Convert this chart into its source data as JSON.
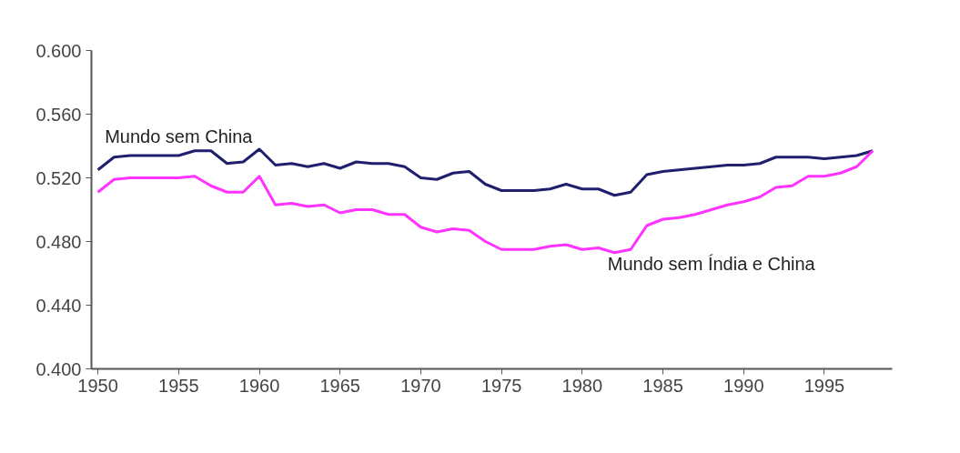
{
  "chart_data": {
    "type": "line",
    "x": [
      1950,
      1951,
      1952,
      1953,
      1954,
      1955,
      1956,
      1957,
      1958,
      1959,
      1960,
      1961,
      1962,
      1963,
      1964,
      1965,
      1966,
      1967,
      1968,
      1969,
      1970,
      1971,
      1972,
      1973,
      1974,
      1975,
      1976,
      1977,
      1978,
      1979,
      1980,
      1981,
      1982,
      1983,
      1984,
      1985,
      1986,
      1987,
      1988,
      1989,
      1990,
      1991,
      1992,
      1993,
      1994,
      1995,
      1996,
      1997,
      1998
    ],
    "series": [
      {
        "name": "Mundo sem China",
        "color": "#1f1f6e",
        "values": [
          0.525,
          0.533,
          0.534,
          0.534,
          0.534,
          0.534,
          0.537,
          0.537,
          0.529,
          0.53,
          0.538,
          0.528,
          0.529,
          0.527,
          0.529,
          0.526,
          0.53,
          0.529,
          0.529,
          0.527,
          0.52,
          0.519,
          0.523,
          0.524,
          0.516,
          0.512,
          0.512,
          0.512,
          0.513,
          0.516,
          0.513,
          0.513,
          0.509,
          0.511,
          0.522,
          0.524,
          0.525,
          0.526,
          0.527,
          0.528,
          0.528,
          0.529,
          0.533,
          0.533,
          0.533,
          0.532,
          0.533,
          0.534,
          0.537
        ]
      },
      {
        "name": "Mundo sem Índia e China",
        "color": "#ff33ff",
        "values": [
          0.511,
          0.519,
          0.52,
          0.52,
          0.52,
          0.52,
          0.521,
          0.515,
          0.511,
          0.511,
          0.521,
          0.503,
          0.504,
          0.502,
          0.503,
          0.498,
          0.5,
          0.5,
          0.497,
          0.497,
          0.489,
          0.486,
          0.488,
          0.487,
          0.48,
          0.475,
          0.475,
          0.475,
          0.477,
          0.478,
          0.475,
          0.476,
          0.473,
          0.475,
          0.49,
          0.494,
          0.495,
          0.497,
          0.5,
          0.503,
          0.505,
          0.508,
          0.514,
          0.515,
          0.521,
          0.521,
          0.523,
          0.527,
          0.537
        ]
      }
    ],
    "xlim": [
      1949.6,
      1999.2
    ],
    "ylim": [
      0.4,
      0.6
    ],
    "xticks": [
      1950,
      1955,
      1960,
      1965,
      1970,
      1975,
      1980,
      1985,
      1990,
      1995
    ],
    "yticks": [
      {
        "value": 0.4,
        "label": "0.400"
      },
      {
        "value": 0.44,
        "label": "0.440"
      },
      {
        "value": 0.48,
        "label": "0.480"
      },
      {
        "value": 0.52,
        "label": "0.520"
      },
      {
        "value": 0.56,
        "label": "0.560"
      },
      {
        "value": 0.6,
        "label": "0.600"
      }
    ],
    "grid": false,
    "legend": false,
    "marker": "none",
    "line_style": "solid"
  }
}
